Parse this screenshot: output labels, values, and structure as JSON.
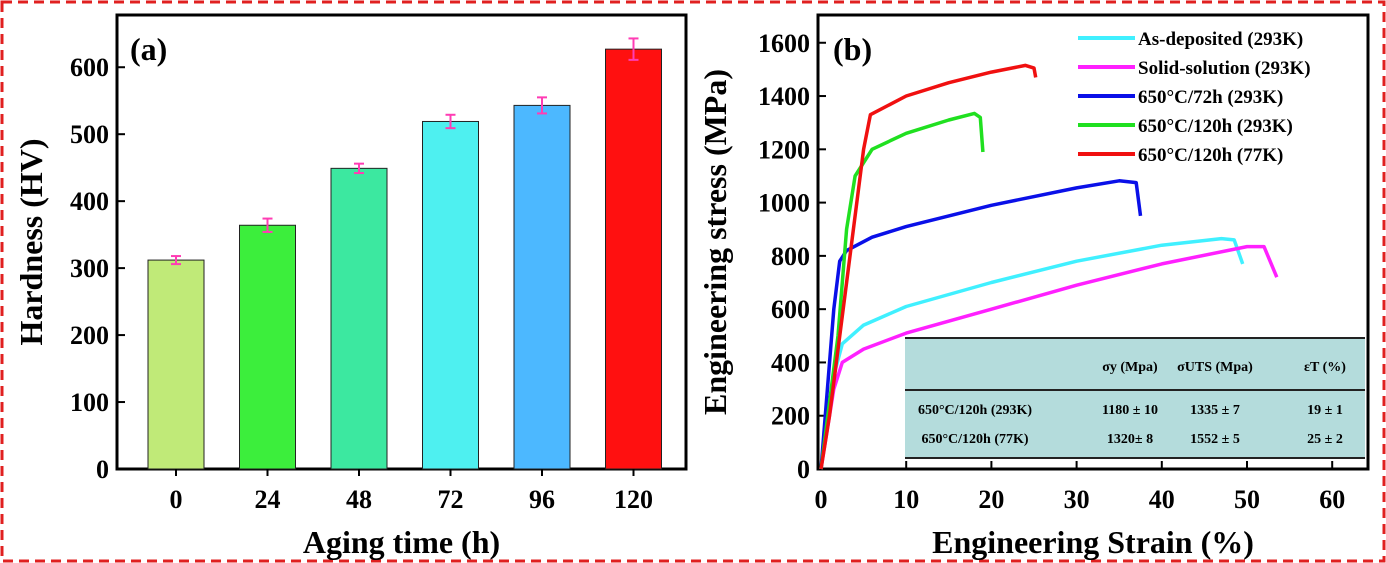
{
  "chart_data": [
    {
      "type": "bar",
      "panel_label": "(a)",
      "xlabel": "Aging time (h)",
      "ylabel": "Hardness (HV)",
      "categories": [
        "0",
        "24",
        "48",
        "72",
        "96",
        "120"
      ],
      "values": [
        312,
        364,
        449,
        519,
        543,
        627
      ],
      "errors": [
        6,
        10,
        7,
        10,
        12,
        16
      ],
      "colors": [
        "#c0ea78",
        "#3cee3c",
        "#3ce8a0",
        "#4ef0f0",
        "#4cb8ff",
        "#ff1010"
      ],
      "error_color": "#ff3cb4",
      "ylim": [
        0,
        660
      ],
      "yticks": [
        0,
        100,
        200,
        300,
        400,
        500,
        600
      ]
    },
    {
      "type": "line",
      "panel_label": "(b)",
      "xlabel": "Engineering Strain (%)",
      "ylabel": "Engineering stress (MPa)",
      "xlim": [
        0,
        64
      ],
      "ylim": [
        0,
        1700
      ],
      "xticks": [
        0,
        10,
        20,
        30,
        40,
        50,
        60
      ],
      "yticks": [
        0,
        200,
        400,
        600,
        800,
        1000,
        1200,
        1400,
        1600
      ],
      "legend_position": "top-right",
      "series": [
        {
          "name": "As-deposited  (293K)",
          "color": "#40f0ff",
          "x": [
            0,
            1.5,
            2.5,
            5,
            10,
            20,
            30,
            40,
            47,
            48.5,
            49.5
          ],
          "y": [
            0,
            350,
            470,
            540,
            610,
            700,
            780,
            840,
            865,
            860,
            770
          ]
        },
        {
          "name": "Solid-solution (293K)",
          "color": "#ff20ff",
          "x": [
            0,
            1.5,
            2.5,
            5,
            10,
            20,
            30,
            40,
            50,
            52,
            53.5
          ],
          "y": [
            0,
            300,
            400,
            450,
            510,
            600,
            690,
            770,
            835,
            835,
            720
          ]
        },
        {
          "name": "650°C/72h (293K)",
          "color": "#0a10e8",
          "x": [
            0,
            1.5,
            2.2,
            3,
            6,
            10,
            20,
            30,
            35,
            37,
            37.5
          ],
          "y": [
            0,
            600,
            780,
            820,
            870,
            910,
            990,
            1055,
            1082,
            1075,
            950
          ]
        },
        {
          "name": "650°C/120h (293K)",
          "color": "#20e020",
          "x": [
            0,
            2,
            3,
            4,
            6,
            10,
            15,
            18,
            18.7,
            19
          ],
          "y": [
            0,
            500,
            900,
            1100,
            1200,
            1260,
            1310,
            1335,
            1320,
            1190
          ]
        },
        {
          "name": "650°C/120h (77K)",
          "color": "#f01010",
          "x": [
            0,
            1,
            3,
            5,
            5.8,
            10,
            15,
            20,
            24,
            25,
            25.2
          ],
          "y": [
            0,
            200,
            700,
            1200,
            1330,
            1400,
            1450,
            1490,
            1515,
            1505,
            1470
          ]
        }
      ],
      "table": {
        "headers": [
          "",
          "σy (Mpa)",
          "σUTS (Mpa)",
          "εT (%)"
        ],
        "rows": [
          [
            "650°C/120h (293K)",
            "1180 ± 10",
            "1335 ± 7",
            "19 ± 1"
          ],
          [
            "650°C/120h (77K)",
            "1320± 8",
            "1552 ± 5",
            "25 ± 2"
          ]
        ]
      }
    }
  ]
}
